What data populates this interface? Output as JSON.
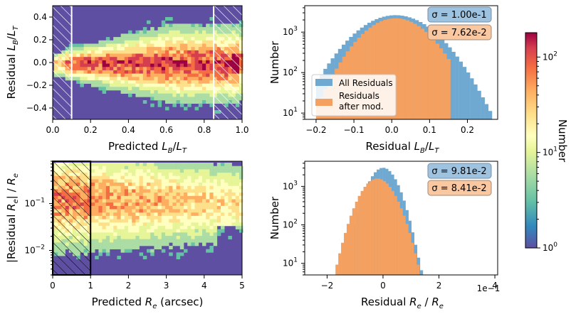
{
  "chart_data": [
    {
      "panel": "top-left",
      "type": "heatmap",
      "xlabel_prefix": "Predicted ",
      "xlabel_sym": "L",
      "xlabel_sub1": "B",
      "xlabel_sub2": "T",
      "ylabel_prefix": "Residual ",
      "xlim": [
        0.0,
        1.0
      ],
      "ylim": [
        -0.5,
        0.5
      ],
      "xticks": [
        "0.0",
        "0.2",
        "0.4",
        "0.6",
        "0.8",
        "1.0"
      ],
      "yticks": [
        "−0.4",
        "−0.2",
        "0.0",
        "0.2",
        "0.4"
      ],
      "hatched_regions": [
        [
          0.0,
          0.1
        ],
        [
          0.85,
          1.0
        ]
      ],
      "colormap": "Spectral_r"
    },
    {
      "panel": "top-right",
      "type": "histogram",
      "xlabel_prefix": "Residual ",
      "ylabel": "Number",
      "xlim": [
        -0.23,
        0.28
      ],
      "yscale": "log",
      "ylim": [
        7,
        4500
      ],
      "xticks": [
        "−0.2",
        "−0.1",
        "0.0",
        "0.1",
        "0.2"
      ],
      "series": [
        {
          "name": "All Residuals",
          "color": "#6fa8d1",
          "sigma_label": "σ = 1.00e-1"
        },
        {
          "name_line1": "Residuals",
          "name_line2": "after mod.",
          "color": "#f4a060",
          "sigma_label": "σ = 7.62e-2"
        }
      ],
      "legend": "center-left"
    },
    {
      "panel": "bottom-left",
      "type": "heatmap",
      "xlabel_prefix": "Predicted ",
      "xlabel_suffix": " (arcsec)",
      "ylabel_prefix": "|Residual ",
      "ylabel_mid": "| / ",
      "xlim": [
        0,
        5
      ],
      "yscale": "log",
      "ylim": [
        0.003,
        0.8
      ],
      "xticks": [
        "0",
        "1",
        "2",
        "3",
        "4",
        "5"
      ],
      "yticks": [
        "10",
        "10"
      ],
      "ytick_exps": [
        "−1",
        "−2"
      ],
      "hatched_regions": [
        [
          0,
          1
        ]
      ],
      "colormap": "Spectral_r"
    },
    {
      "panel": "bottom-right",
      "type": "histogram",
      "xlabel_prefix": "Residual ",
      "xlabel_mid": " / ",
      "ylabel": "Number",
      "xlim": [
        -2.8,
        4.1
      ],
      "x_offset_label": "1e−1",
      "yscale": "log",
      "ylim": [
        5,
        4500
      ],
      "xticks": [
        "−2",
        "0",
        "2",
        "4"
      ],
      "series": [
        {
          "name": "All Residuals",
          "color": "#6fa8d1",
          "sigma_label": "σ = 9.81e-2"
        },
        {
          "name": "Residuals after mod.",
          "color": "#f4a060",
          "sigma_label": "σ = 8.41e-2"
        }
      ]
    },
    {
      "panel": "colorbar",
      "type": "colorbar",
      "label": "Number",
      "scale": "log",
      "range": [
        1,
        180
      ],
      "ticks_base": "10",
      "tick_exps": [
        "2",
        "1",
        "0"
      ],
      "colormap": "Spectral_r"
    }
  ]
}
